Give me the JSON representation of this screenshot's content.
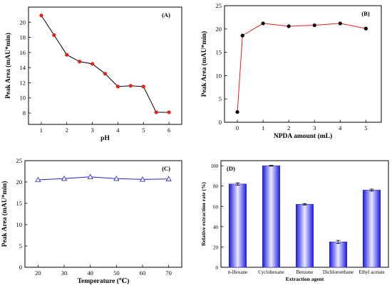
{
  "chart_data": [
    {
      "panel": "(A)",
      "type": "line",
      "xlabel": "pH",
      "ylabel": "Peak Area (mAU*min)",
      "xlim": [
        0.5,
        6.5
      ],
      "ylim": [
        6.5,
        22
      ],
      "xticks": [
        1,
        2,
        3,
        4,
        5,
        6
      ],
      "yticks": [
        8,
        10,
        12,
        14,
        16,
        18,
        20
      ],
      "colors": {
        "line": "#000000",
        "marker": "#e8201a"
      },
      "x": [
        1,
        1.5,
        2,
        2.5,
        3,
        3.5,
        4,
        4.5,
        5,
        5.5,
        6
      ],
      "y": [
        20.9,
        18.3,
        15.7,
        14.8,
        14.5,
        13.2,
        11.5,
        11.6,
        11.5,
        8.1,
        8.1
      ]
    },
    {
      "panel": "(B)",
      "type": "line",
      "xlabel": "NPDA amount (mL)",
      "ylabel": "Peak Area (mAU*min)",
      "xlim": [
        -0.5,
        5.6
      ],
      "ylim": [
        0,
        25
      ],
      "xticks": [
        0,
        1,
        2,
        3,
        4,
        5
      ],
      "yticks": [
        0,
        5,
        10,
        15,
        20,
        25
      ],
      "colors": {
        "line": "#e8201a",
        "marker": "#000000"
      },
      "x": [
        0,
        0.2,
        1,
        2,
        3,
        4,
        5
      ],
      "y": [
        2.2,
        18.6,
        21.2,
        20.6,
        20.8,
        21.2,
        20.1
      ]
    },
    {
      "panel": "(C)",
      "type": "line",
      "xlabel": "Temperature (℃)",
      "ylabel": "Peak Area (mAU*min)",
      "xlim": [
        15,
        75
      ],
      "ylim": [
        0,
        25
      ],
      "xticks": [
        20,
        30,
        40,
        50,
        60,
        70
      ],
      "yticks": [
        0,
        5,
        10,
        15,
        20,
        25
      ],
      "colors": {
        "line": "#2020c8",
        "marker": "#2020c8"
      },
      "x": [
        20,
        30,
        40,
        50,
        60,
        70
      ],
      "y": [
        20.5,
        20.8,
        21.2,
        20.8,
        20.6,
        20.7
      ]
    },
    {
      "panel": "(D)",
      "type": "bar",
      "xlabel": "Extraction agent",
      "ylabel": "Relative extraction rate (%)",
      "ylim": [
        0,
        105
      ],
      "yticks": [
        0,
        20,
        40,
        60,
        80,
        100
      ],
      "categories": [
        "n-Hexane",
        "Cyclohexane",
        "Benzene",
        "Dichloroethane",
        "Ethyl acetate"
      ],
      "values": [
        82,
        100,
        62,
        25,
        76
      ],
      "errors": [
        1.2,
        0.4,
        0.8,
        1.5,
        1.0
      ],
      "colors": {
        "bar_top": "#1a1ae0",
        "bar_mid": "#eaeaff",
        "bar_edge": "#2a2ac8"
      }
    }
  ]
}
